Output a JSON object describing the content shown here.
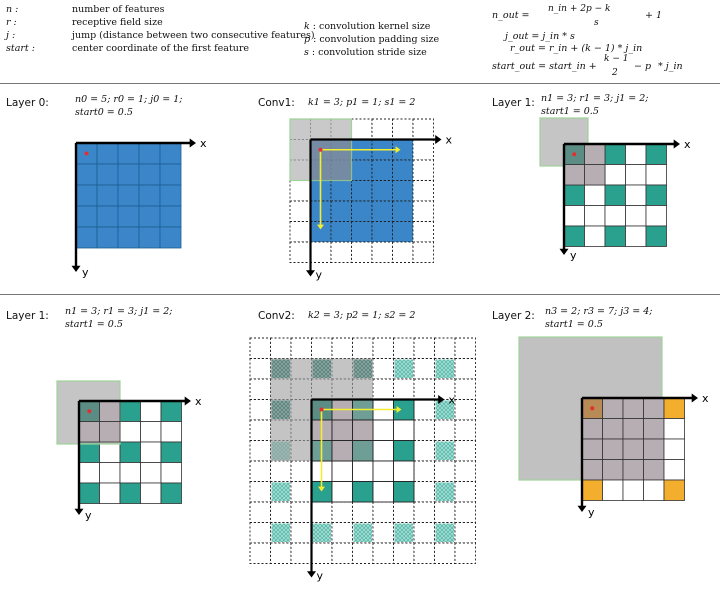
{
  "definitions": [
    {
      "symbol": "n :",
      "text": "number of features"
    },
    {
      "symbol": "r :",
      "text": "receptive field size"
    },
    {
      "symbol": "j :",
      "text": "jump (distance between two consecutive features)"
    },
    {
      "symbol": "start :",
      "text": "center coordinate of the first feature"
    }
  ],
  "conv_params_legend": [
    {
      "symbol": "k",
      "text": ": convolution kernel size"
    },
    {
      "symbol": "p",
      "text": ": convolution padding size"
    },
    {
      "symbol": "s",
      "text": ": convolution stride size"
    }
  ],
  "formulas": {
    "n_out_lhs": "n_out =",
    "n_out_num": "n_in + 2p − k",
    "n_out_den": "s",
    "n_out_tail": "+ 1",
    "j_out": "j_out = j_in * s",
    "r_out": "r_out = r_in + (k − 1) * j_in",
    "start_lhs": "start_out = start_in +",
    "start_num": "k − 1",
    "start_den": "2",
    "start_tail": "− p",
    "start_end": "* j_in"
  },
  "axis_x": "x",
  "axis_y": "y",
  "panels": {
    "layer0": {
      "title": "Layer 0:",
      "line1": "n0 = 5; r0 = 1; j0 = 1;",
      "line2": "start0 = 0.5"
    },
    "conv1": {
      "title": "Conv1:",
      "line1": "k1 = 3; p1 = 1; s1 = 2"
    },
    "layer1a": {
      "title": "Layer 1:",
      "line1": "n1 = 3; r1 = 3; j1 = 2;",
      "line2": "start1 = 0.5"
    },
    "layer1b": {
      "title": "Layer 1:",
      "line1": "n1 = 3; r1 = 3; j1 = 2;",
      "line2": "start1 = 0.5"
    },
    "conv2": {
      "title": "Conv2:",
      "line1": "k2 = 3; p2 = 1; s2 = 2"
    },
    "layer2": {
      "title": "Layer 2:",
      "line1": "n3 = 2; r3 = 7; j3 = 4;",
      "line2": "start1 = 0.5"
    }
  },
  "colors": {
    "blue": "#3a86c8",
    "teal": "#2aa08e",
    "orange": "#f2ae2c",
    "gray_field": "#bdbdbd",
    "gray_cell": "#b7aeb4",
    "green_border": "#9fd39a",
    "arrow_yellow": "#f4ee2e",
    "center_dot": "#e23030"
  }
}
